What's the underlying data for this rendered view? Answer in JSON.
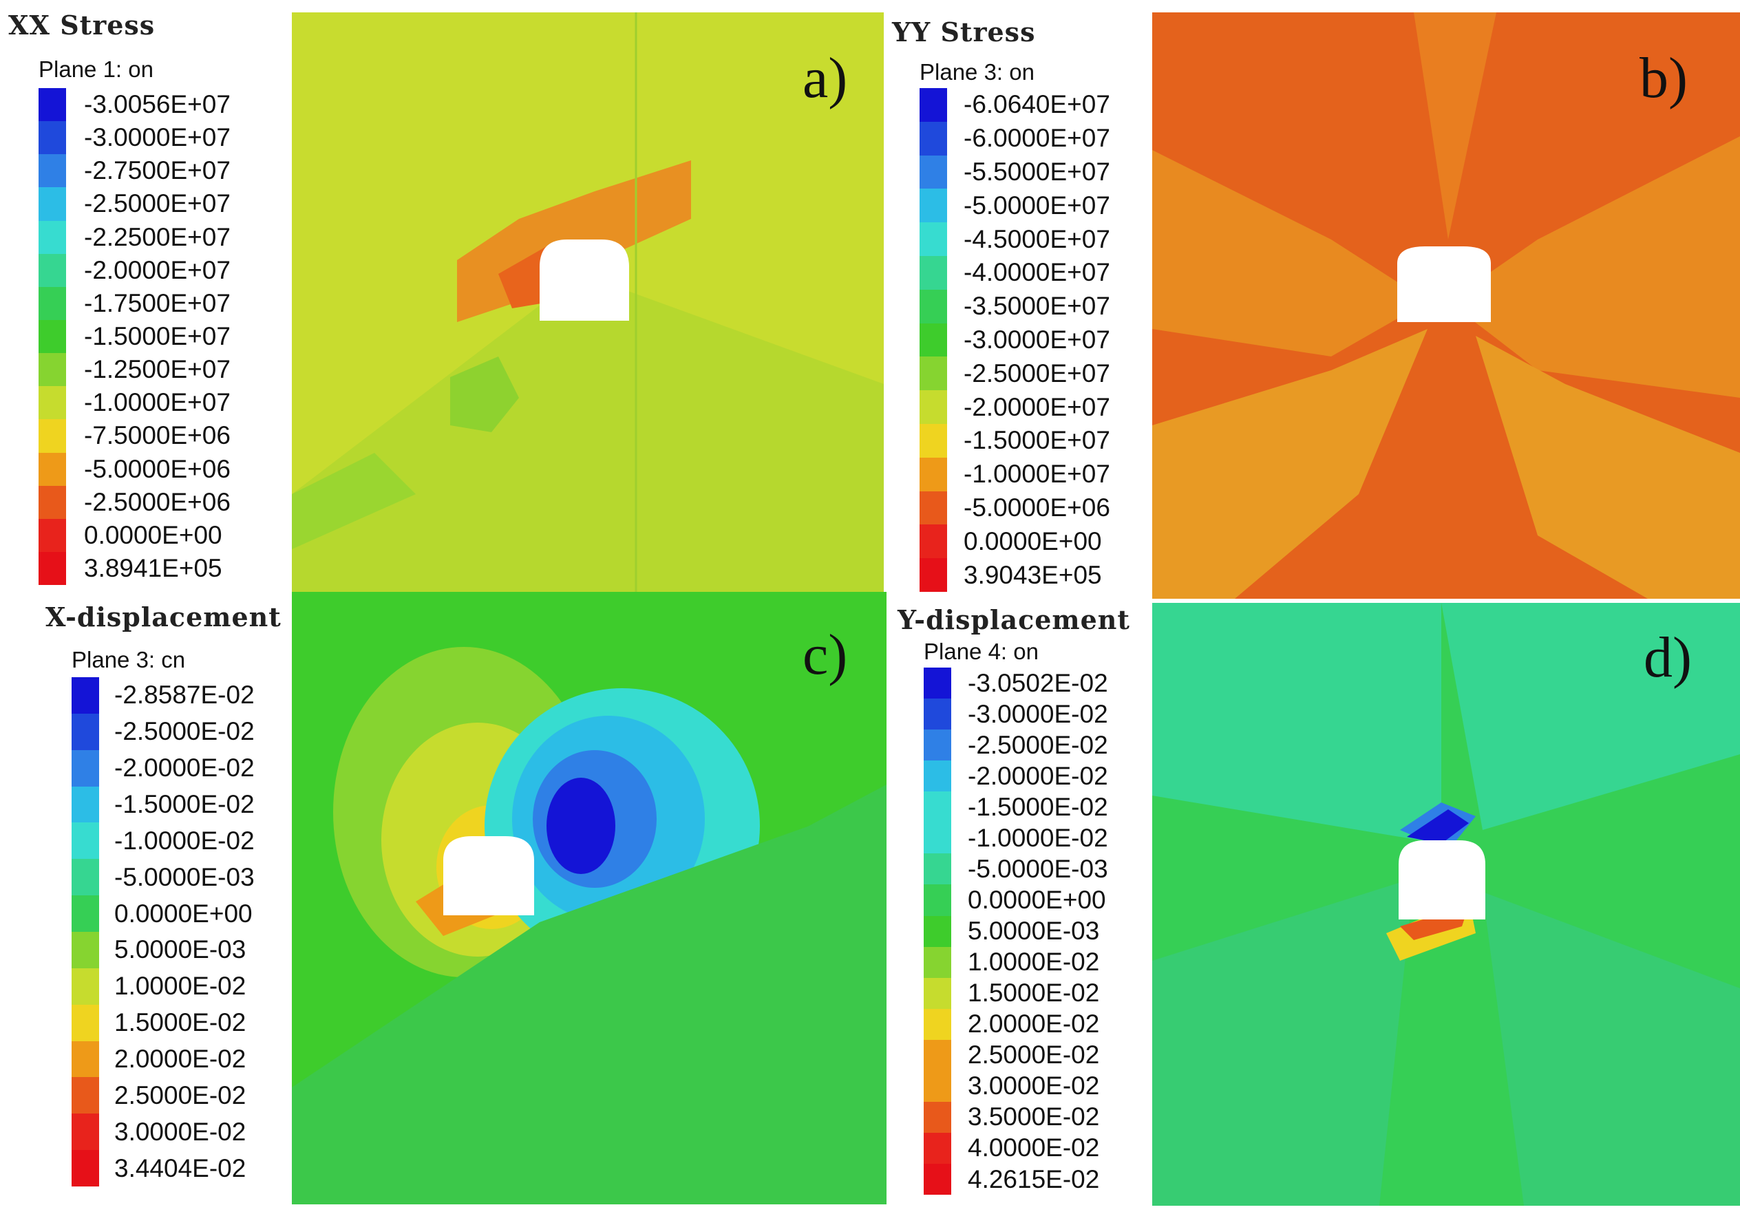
{
  "colors": {
    "c0": "#1414d6",
    "c1": "#1f49dc",
    "c2": "#2f80e6",
    "c3": "#2cbde6",
    "c4": "#37dcd0",
    "c5": "#36d691",
    "c6": "#36cf55",
    "c7": "#3ecc2c",
    "c8": "#86d430",
    "c9": "#c6dc2e",
    "c10": "#efd420",
    "c11": "#ee9a18",
    "c12": "#e8591b",
    "c13": "#e8231c",
    "c14": "#e61018"
  },
  "panels": {
    "a": {
      "title": "XX Stress",
      "plane": "Plane 1: on",
      "tag": "a)",
      "legend": [
        "-3.0056E+07",
        "-3.0000E+07",
        "-2.7500E+07",
        "-2.5000E+07",
        "-2.2500E+07",
        "-2.0000E+07",
        "-1.7500E+07",
        "-1.5000E+07",
        "-1.2500E+07",
        "-1.0000E+07",
        "-7.5000E+06",
        "-5.0000E+06",
        "-2.5000E+06",
        "0.0000E+00",
        "3.8941E+05"
      ]
    },
    "b": {
      "title": "YY Stress",
      "plane": "Plane 3: on",
      "tag": "b)",
      "legend": [
        "-6.0640E+07",
        "-6.0000E+07",
        "-5.5000E+07",
        "-5.0000E+07",
        "-4.5000E+07",
        "-4.0000E+07",
        "-3.5000E+07",
        "-3.0000E+07",
        "-2.5000E+07",
        "-2.0000E+07",
        "-1.5000E+07",
        "-1.0000E+07",
        "-5.0000E+06",
        "0.0000E+00",
        "3.9043E+05"
      ]
    },
    "c": {
      "title": "X-displacement",
      "plane": "Plane 3: cn",
      "tag": "c)",
      "legend": [
        "-2.8587E-02",
        "-2.5000E-02",
        "-2.0000E-02",
        "-1.5000E-02",
        "-1.0000E-02",
        "-5.0000E-03",
        "0.0000E+00",
        "5.0000E-03",
        "1.0000E-02",
        "1.5000E-02",
        "2.0000E-02",
        "2.5000E-02",
        "3.0000E-02",
        "3.4404E-02"
      ]
    },
    "d": {
      "title": "Y-displacement",
      "plane": "Plane 4: on",
      "tag": "d)",
      "legend": [
        "-3.0502E-02",
        "-3.0000E-02",
        "-2.5000E-02",
        "-2.0000E-02",
        "-1.5000E-02",
        "-1.0000E-02",
        "-5.0000E-03",
        "0.0000E+00",
        "5.0000E-03",
        "1.0000E-02",
        "1.5000E-02",
        "2.0000E-02",
        "2.5000E-02",
        "3.0000E-02",
        "3.5000E-02",
        "4.0000E-02",
        "4.2615E-02"
      ]
    }
  }
}
